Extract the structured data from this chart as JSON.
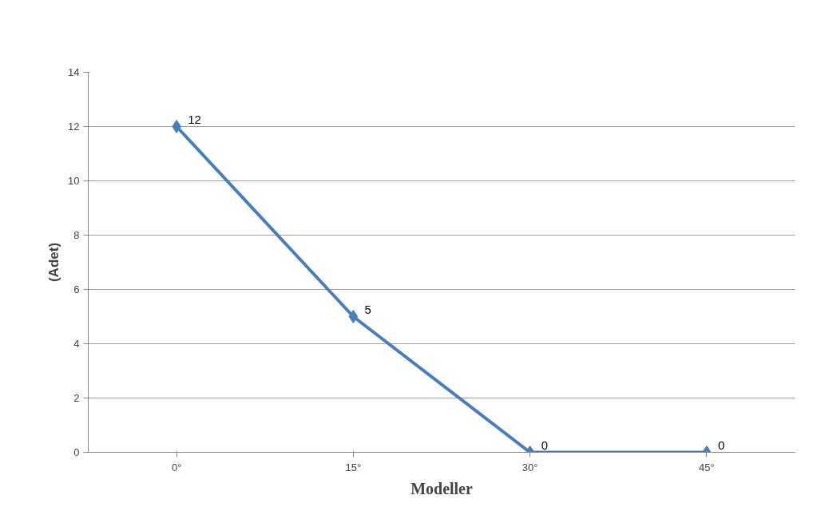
{
  "chart_data": {
    "type": "line",
    "xlabel": "Modeller",
    "ylabel": "(Adet)",
    "categories": [
      "0°",
      "15°",
      "30°",
      "45°"
    ],
    "series": [
      {
        "color": "#4a7ebb",
        "values": [
          12,
          5,
          0,
          0
        ]
      }
    ],
    "ylim": [
      0,
      14
    ],
    "yticks": [
      0,
      2,
      4,
      6,
      8,
      10,
      12,
      14
    ],
    "grid": "y",
    "marker": "diamond",
    "line_style": "solid",
    "data_labels": true
  }
}
